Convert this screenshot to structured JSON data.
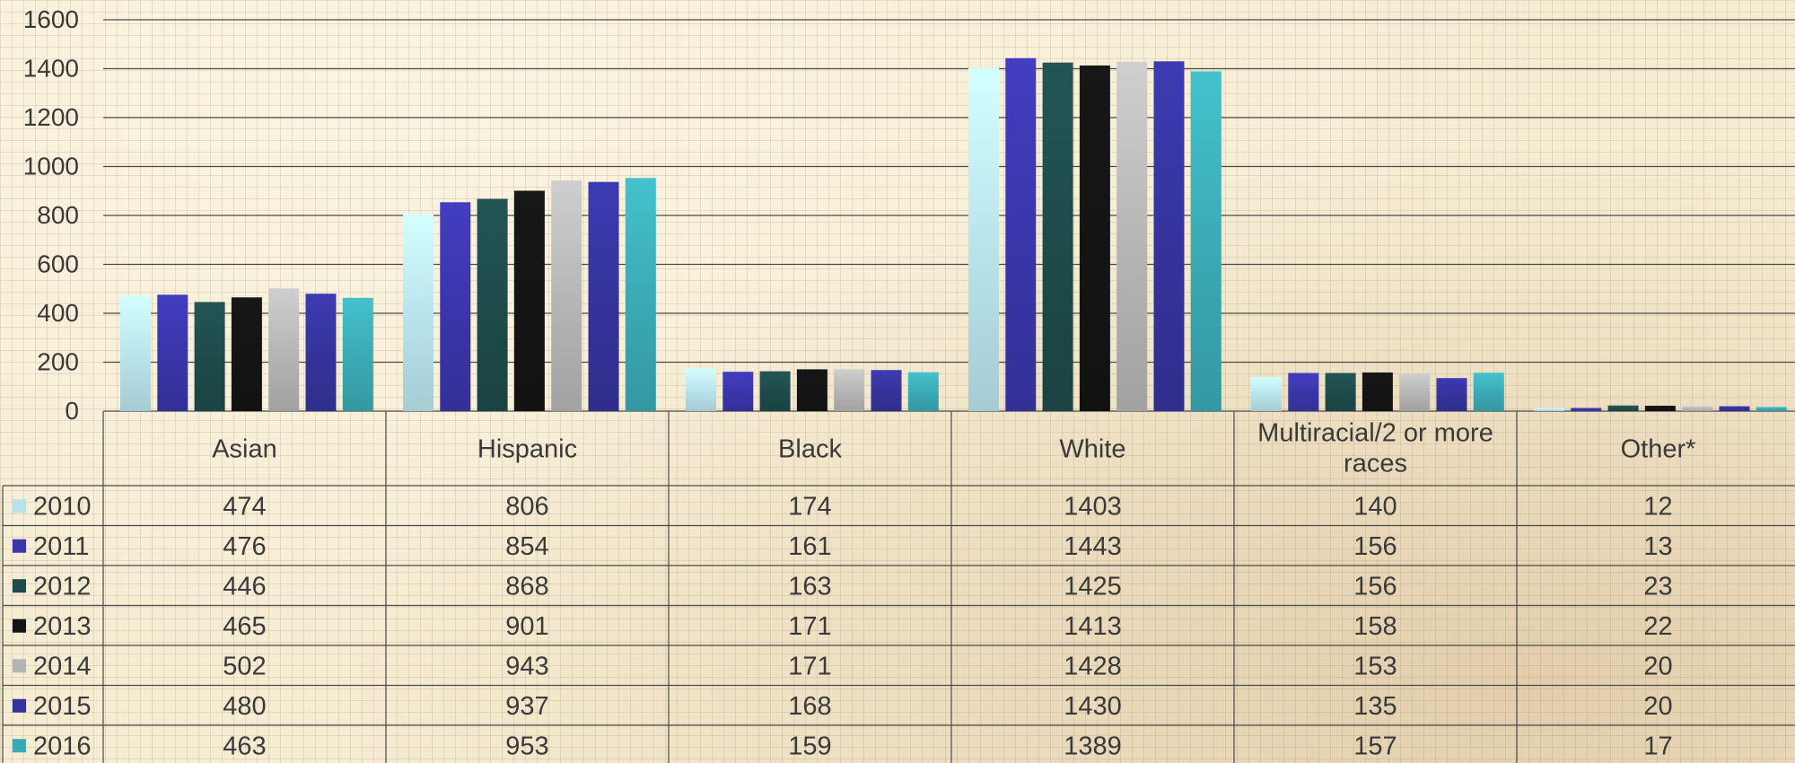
{
  "chart_data": {
    "type": "bar",
    "categories": [
      "Asian",
      "Hispanic",
      "Black",
      "White",
      "Multiracial/2 or more races",
      "Other*"
    ],
    "y_ticks": [
      0,
      200,
      400,
      600,
      800,
      1000,
      1200,
      1400,
      1600
    ],
    "ylim": [
      0,
      1600
    ],
    "grid": true,
    "legend": "data-table",
    "series": [
      {
        "name": "2010",
        "color": "#b8e2ea",
        "values": [
          474,
          806,
          174,
          1403,
          140,
          12
        ]
      },
      {
        "name": "2011",
        "color": "#3a35a8",
        "values": [
          476,
          854,
          161,
          1443,
          156,
          13
        ]
      },
      {
        "name": "2012",
        "color": "#1e4a4a",
        "values": [
          446,
          868,
          163,
          1425,
          156,
          23
        ]
      },
      {
        "name": "2013",
        "color": "#141414",
        "values": [
          465,
          901,
          171,
          1413,
          158,
          22
        ]
      },
      {
        "name": "2014",
        "color": "#b4b4b4",
        "values": [
          502,
          943,
          171,
          1428,
          153,
          20
        ]
      },
      {
        "name": "2015",
        "color": "#35339a",
        "values": [
          480,
          937,
          168,
          1430,
          135,
          20
        ]
      },
      {
        "name": "2016",
        "color": "#3aa9b3",
        "values": [
          463,
          953,
          159,
          1389,
          157,
          17
        ]
      }
    ]
  }
}
